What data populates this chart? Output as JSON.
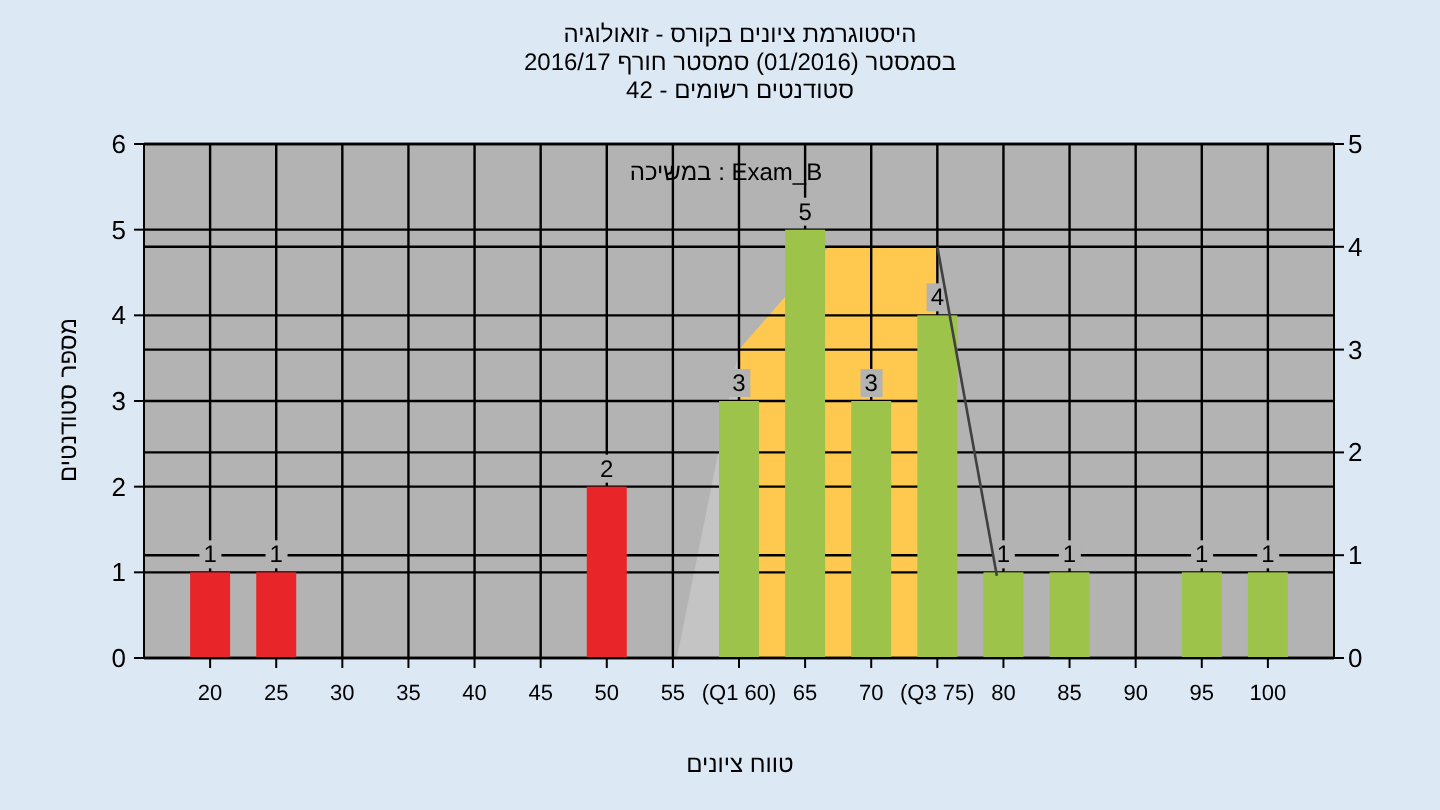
{
  "chart_data": {
    "type": "bar",
    "title": "היסטוגרמת ציונים בקורס - זואולוגיה",
    "subtitle": "בסמסטר (01/2016) סמסטר חורף 2016/17",
    "annotations": [
      "סטודנטים רשומים - 42",
      "במשיכה : Exam_B"
    ],
    "xlabel": "טווח ציונים",
    "ylabel": "מספר סטודנטים",
    "xlim": [
      15,
      105
    ],
    "xticks": [
      20,
      25,
      30,
      35,
      40,
      45,
      50,
      55,
      {
        "value": 60,
        "label": "(Q1 60)"
      },
      65,
      70,
      {
        "value": 75,
        "label": "(Q3 75)"
      },
      80,
      85,
      90,
      95,
      100
    ],
    "ylim": [
      0,
      6
    ],
    "yticks": [
      0,
      1,
      2,
      3,
      4,
      5,
      6
    ],
    "y2lim": [
      0,
      5
    ],
    "y2ticks": [
      0,
      1,
      2,
      3,
      4,
      5
    ],
    "grid": true,
    "series": [
      {
        "x": [
          20,
          25,
          50,
          60,
          65,
          70,
          75,
          80,
          85,
          95,
          100
        ],
        "values": [
          1,
          1,
          2,
          3,
          5,
          3,
          4,
          1,
          1,
          1,
          1
        ],
        "value_labels": [
          "1",
          "1",
          "2",
          "3",
          "5",
          "3",
          "4",
          "1",
          "1",
          "1",
          "1"
        ],
        "colors": [
          "#e8262a",
          "#e8262a",
          "#e8262a",
          "#9dc34a",
          "#9dc34a",
          "#9dc34a",
          "#9dc34a",
          "#9dc34a",
          "#9dc34a",
          "#9dc34a",
          "#9dc34a"
        ]
      },
      {
        "type": "area",
        "axis": "y2",
        "color": "#ffc84f",
        "x": [
          60,
          66.8,
          75
        ],
        "values": [
          3,
          4,
          4
        ]
      },
      {
        "type": "area",
        "axis": "y2",
        "color": "#c4c4c4",
        "x": [
          55.3,
          60
        ],
        "values": [
          0,
          3
        ]
      },
      {
        "type": "line",
        "axis": "y2",
        "color": "#404040",
        "x": [
          75,
          79.5
        ],
        "values": [
          4,
          0.8
        ]
      }
    ]
  }
}
